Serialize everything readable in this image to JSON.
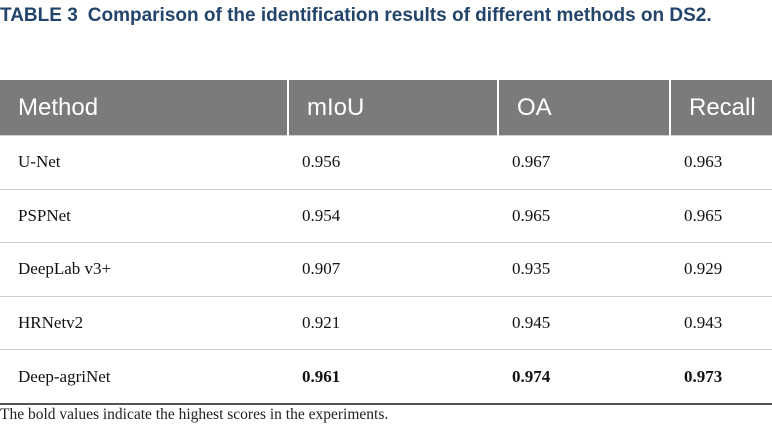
{
  "header": {
    "label": "TABLE 3",
    "title": "Comparison of the identification results of different methods on DS2."
  },
  "table": {
    "columns": [
      "Method",
      "mIoU",
      "OA",
      "Recall"
    ],
    "rows": [
      [
        "U-Net",
        "0.956",
        "0.967",
        "0.963"
      ],
      [
        "PSPNet",
        "0.954",
        "0.965",
        "0.965"
      ],
      [
        "DeepLab v3+",
        "0.907",
        "0.935",
        "0.929"
      ],
      [
        "HRNetv2",
        "0.921",
        "0.945",
        "0.943"
      ],
      [
        "Deep-agriNet",
        "0.961",
        "0.974",
        "0.973"
      ]
    ]
  },
  "footnote": "The bold values indicate the highest scores in the experiments."
}
